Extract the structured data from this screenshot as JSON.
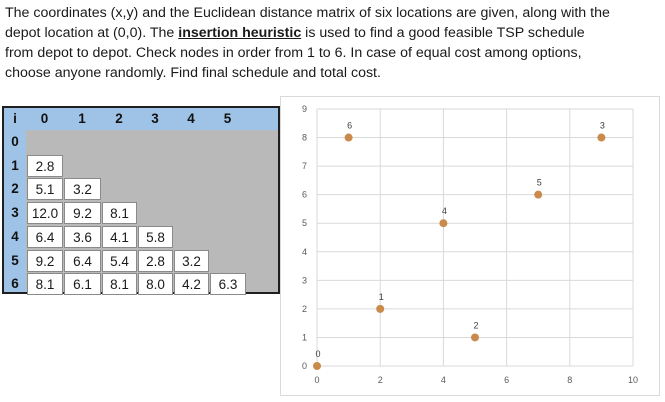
{
  "problem": {
    "line1": "The coordinates (x,y) and the Euclidean distance matrix of six locations are given, along with the",
    "line2_pre": "depot location at (0,0).  The ",
    "line2_highlight": "insertion heuristic",
    "line2_post": " is used to find a good feasible TSP schedule",
    "line3": "from depot to depot.  Check nodes in order from 1 to 6.  In case of equal cost among options,",
    "line4": "choose anyone randomly.  Find final schedule and total cost."
  },
  "matrix": {
    "corner": "i",
    "col_headers": [
      "0",
      "1",
      "2",
      "3",
      "4",
      "5"
    ],
    "row_headers": [
      "0",
      "1",
      "2",
      "3",
      "4",
      "5",
      "6"
    ],
    "rows": [
      [],
      [
        "2.8"
      ],
      [
        "5.1",
        "3.2"
      ],
      [
        "12.0",
        "9.2",
        "8.1"
      ],
      [
        "6.4",
        "3.6",
        "4.1",
        "5.8"
      ],
      [
        "9.2",
        "6.4",
        "5.4",
        "2.8",
        "3.2"
      ],
      [
        "8.1",
        "6.1",
        "8.1",
        "8.0",
        "4.2",
        "6.3"
      ]
    ]
  },
  "chart_data": {
    "type": "scatter",
    "xlim": [
      0,
      10
    ],
    "ylim": [
      0,
      9
    ],
    "x_ticks": [
      "0",
      "2",
      "4",
      "6",
      "8",
      "10"
    ],
    "y_ticks": [
      "0",
      "1",
      "2",
      "3",
      "4",
      "5",
      "6",
      "7",
      "8",
      "9"
    ],
    "grid": true,
    "point_color": "#c98a4b",
    "points": [
      {
        "label": "0",
        "x": 0,
        "y": 0
      },
      {
        "label": "1",
        "x": 2,
        "y": 2
      },
      {
        "label": "2",
        "x": 5,
        "y": 1
      },
      {
        "label": "3",
        "x": 9,
        "y": 8
      },
      {
        "label": "4",
        "x": 4,
        "y": 5
      },
      {
        "label": "5",
        "x": 7,
        "y": 6
      },
      {
        "label": "6",
        "x": 1,
        "y": 8
      }
    ]
  }
}
